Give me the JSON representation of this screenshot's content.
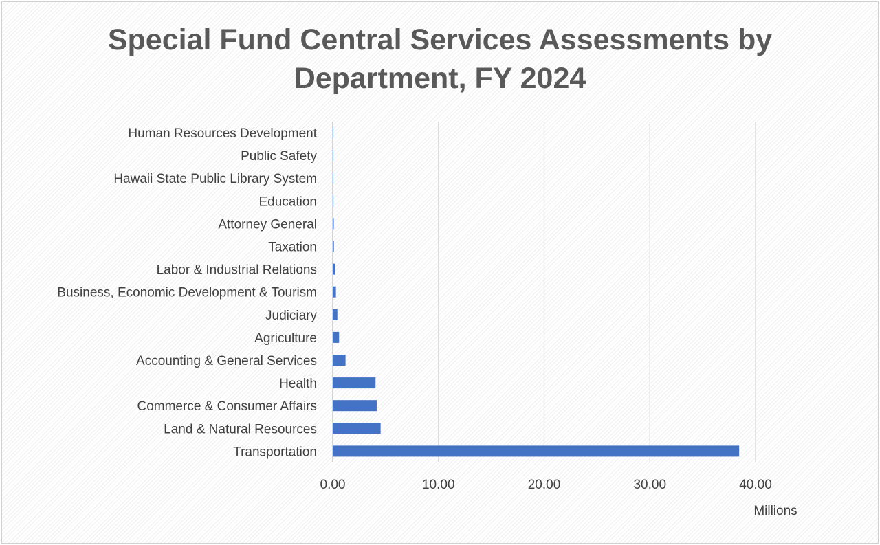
{
  "chart_data": {
    "type": "bar",
    "orientation": "horizontal",
    "title": "Special Fund Central Services Assessments by Department, FY 2024",
    "title_lines": [
      "Special Fund Central Services Assessments by",
      "Department, FY 2024"
    ],
    "xlabel": "Millions",
    "ylabel": "",
    "xlim": [
      0,
      40
    ],
    "x_ticks": [
      "0.00",
      "10.00",
      "20.00",
      "30.00",
      "40.00"
    ],
    "grid": "vertical",
    "legend": "none",
    "bar_color": "#4472C4",
    "categories": [
      "Human Resources Development",
      "Public Safety",
      "Hawaii State Public Library System",
      "Education",
      "Attorney General",
      "Taxation",
      "Labor & Industrial Relations",
      "Business, Economic Development & Tourism",
      "Judiciary",
      "Agriculture",
      "Accounting & General Services",
      "Health",
      "Commerce & Consumer Affairs",
      "Land & Natural Resources",
      "Transportation"
    ],
    "values": [
      0.01,
      0.02,
      0.05,
      0.07,
      0.1,
      0.11,
      0.2,
      0.3,
      0.44,
      0.6,
      1.21,
      4.05,
      4.16,
      4.53,
      38.45
    ]
  }
}
